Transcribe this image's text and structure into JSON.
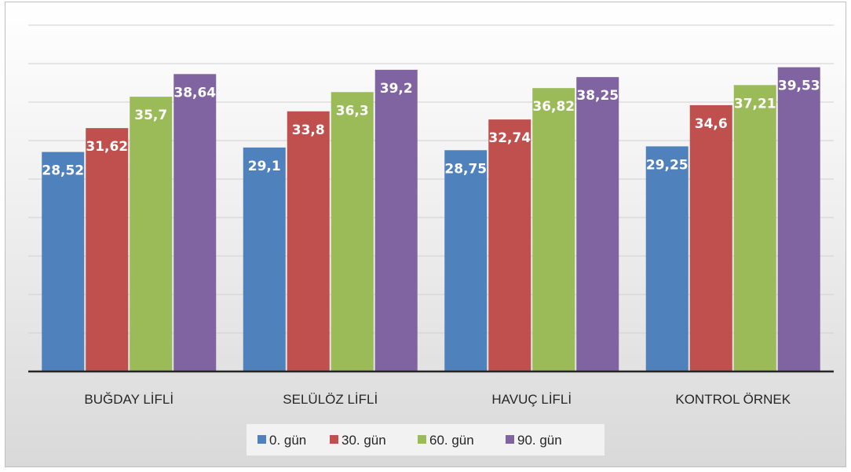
{
  "chart_data": {
    "type": "bar",
    "categories": [
      "BUĞDAY LİFLİ",
      "SELÜLÖZ LİFLİ",
      "HAVUÇ LİFLİ",
      "KONTROL ÖRNEK"
    ],
    "series": [
      {
        "name": "0. gün",
        "color": "#4f81bd",
        "values": [
          28.52,
          29.1,
          28.75,
          29.25
        ],
        "labels": [
          "28,52",
          "29,1",
          "28,75",
          "29,25"
        ]
      },
      {
        "name": "30. gün",
        "color": "#c0504d",
        "values": [
          31.62,
          33.8,
          32.74,
          34.6
        ],
        "labels": [
          "31,62",
          "33,8",
          "32,74",
          "34,6"
        ]
      },
      {
        "name": "60. gün",
        "color": "#9bbb59",
        "values": [
          35.7,
          36.3,
          36.82,
          37.21
        ],
        "labels": [
          "35,7",
          "36,3",
          "36,82",
          "37,21"
        ]
      },
      {
        "name": "90. gün",
        "color": "#8064a2",
        "values": [
          38.64,
          39.2,
          38.25,
          39.53
        ],
        "labels": [
          "38,64",
          "39,2",
          "38,25",
          "39,53"
        ]
      }
    ],
    "ylim": [
      0,
      45
    ],
    "grid": true,
    "legend": "bottom"
  }
}
